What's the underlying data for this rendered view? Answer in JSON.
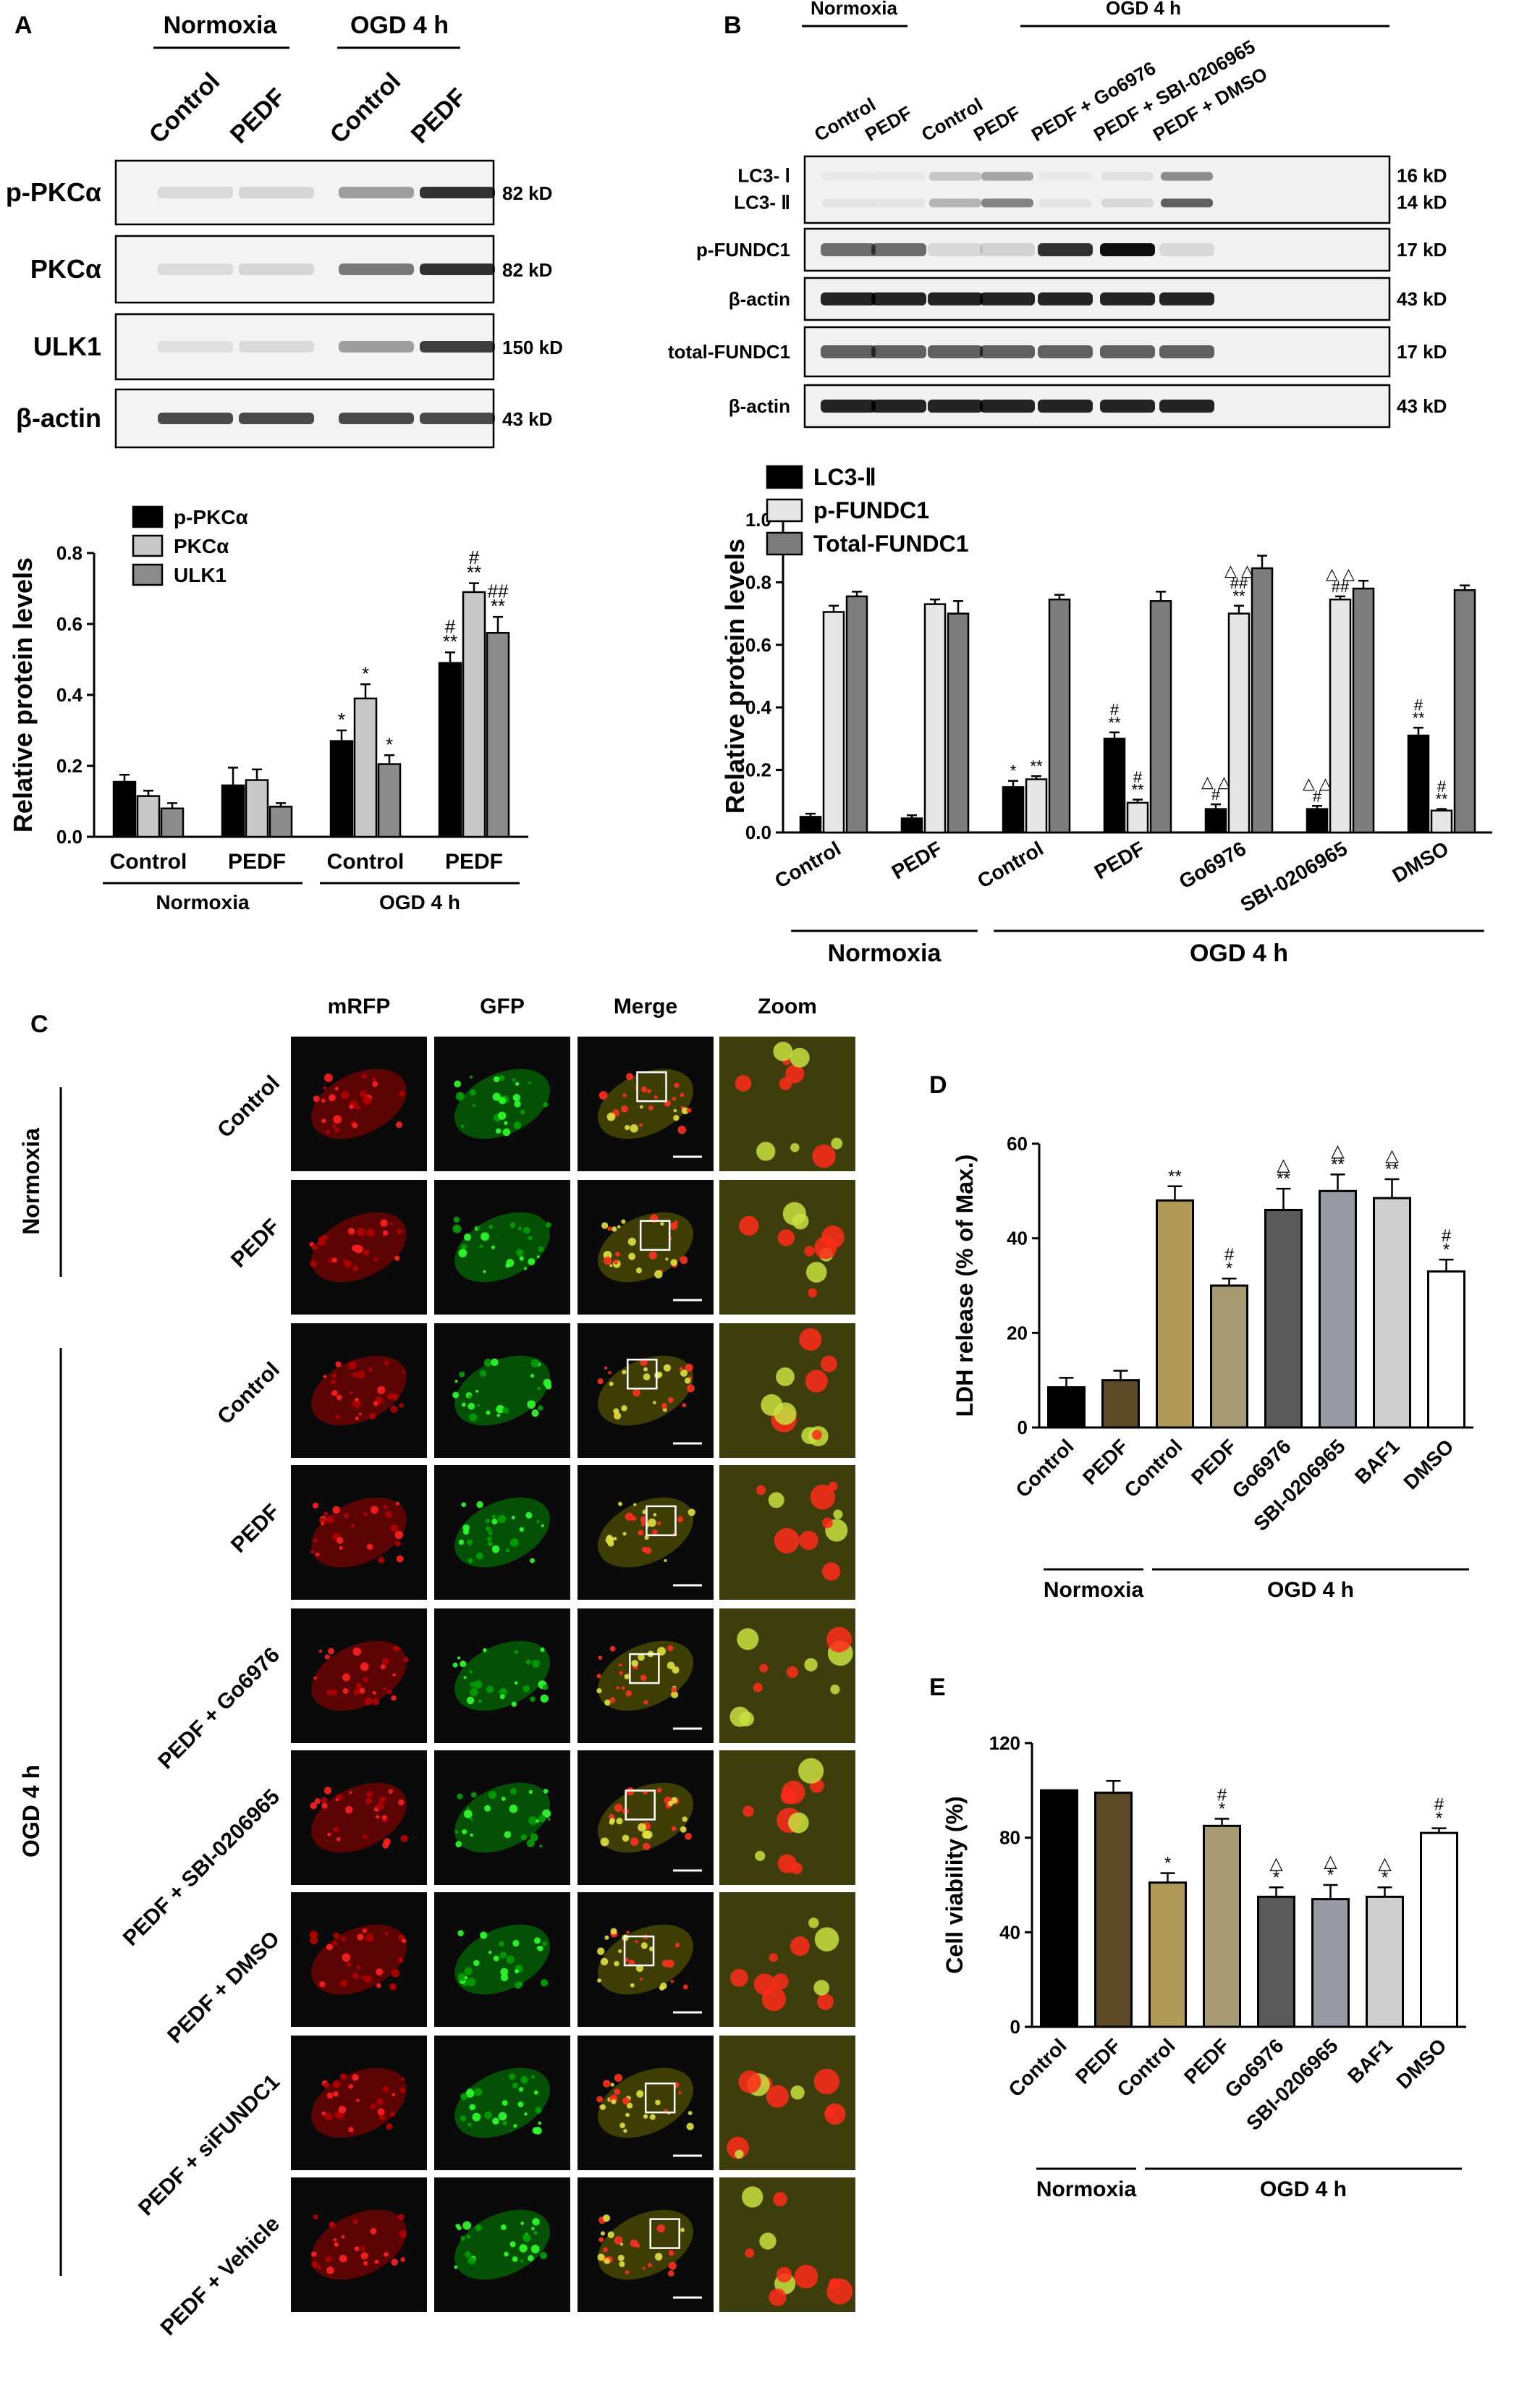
{
  "panels": {
    "A": {
      "letter": "A",
      "groups": [
        "Normoxia",
        "OGD 4 h"
      ],
      "lanes": [
        "Control",
        "PEDF",
        "Control",
        "PEDF"
      ],
      "blots": [
        {
          "name": "p-PKCα",
          "kd": "82 kD"
        },
        {
          "name": "PKCα",
          "kd": "82 kD"
        },
        {
          "name": "ULK1",
          "kd": "150 kD"
        },
        {
          "name": "β-actin",
          "kd": "43 kD"
        }
      ]
    },
    "B": {
      "letter": "B",
      "groups": [
        "Normoxia",
        "OGD 4 h"
      ],
      "lanes": [
        "Control",
        "PEDF",
        "Control",
        "PEDF",
        "PEDF + Go6976",
        "PEDF + SBI-0206965",
        "PEDF + DMSO"
      ],
      "blots": [
        {
          "name": "LC3- Ⅰ",
          "name2": "LC3- Ⅱ",
          "kd": "16 kD",
          "kd2": "14 kD"
        },
        {
          "name": "p-FUNDC1",
          "kd": "17 kD"
        },
        {
          "name": "β-actin",
          "kd": "43 kD"
        },
        {
          "name": "total-FUNDC1",
          "kd": "17 kD"
        },
        {
          "name": "β-actin",
          "kd": "43 kD"
        }
      ]
    },
    "C": {
      "letter": "C",
      "columns": [
        "mRFP",
        "GFP",
        "Merge",
        "Zoom"
      ],
      "rows": [
        "Control",
        "PEDF",
        "Control",
        "PEDF",
        "PEDF + Go6976",
        "PEDF + SBI-0206965",
        "PEDF + DMSO",
        "PEDF + siFUNDC1",
        "PEDF + Vehicle"
      ],
      "side_groups": [
        "Normoxia",
        "OGD 4 h"
      ]
    },
    "D": {
      "letter": "D"
    },
    "E": {
      "letter": "E"
    }
  },
  "chart_data": [
    {
      "id": "A",
      "type": "bar",
      "categories": [
        "Control",
        "PEDF",
        "Control",
        "PEDF"
      ],
      "groups": [
        {
          "label": "Normoxia",
          "span": [
            0,
            1
          ]
        },
        {
          "label": "OGD 4 h",
          "span": [
            2,
            3
          ]
        }
      ],
      "series": [
        {
          "name": "p-PKCα",
          "color": "#000000",
          "values": [
            0.155,
            0.145,
            0.27,
            0.49
          ],
          "errors": [
            0.02,
            0.05,
            0.03,
            0.03
          ],
          "labels": [
            "",
            "",
            "*",
            "#\n**"
          ]
        },
        {
          "name": "PKCα",
          "color": "#c8c8c8",
          "values": [
            0.115,
            0.16,
            0.39,
            0.69
          ],
          "errors": [
            0.015,
            0.03,
            0.04,
            0.025
          ],
          "labels": [
            "",
            "",
            "*",
            "#\n**"
          ]
        },
        {
          "name": "ULK1",
          "color": "#8c8c8c",
          "values": [
            0.08,
            0.085,
            0.205,
            0.575
          ],
          "errors": [
            0.015,
            0.01,
            0.025,
            0.045
          ],
          "labels": [
            "",
            "",
            "*",
            "##\n**"
          ]
        }
      ],
      "ylabel": "Relative protein levels",
      "ylim": [
        0,
        0.8
      ],
      "yticks": [
        "0.0",
        "0.2",
        "0.4",
        "0.6",
        "0.8"
      ],
      "legend": "top-left"
    },
    {
      "id": "B",
      "type": "bar",
      "categories": [
        "Control",
        "PEDF",
        "Control",
        "PEDF",
        "Go6976",
        "SBI-0206965",
        "DMSO"
      ],
      "groups": [
        {
          "label": "Normoxia",
          "span": [
            0,
            1
          ]
        },
        {
          "label": "OGD 4 h",
          "span": [
            2,
            6
          ]
        }
      ],
      "series": [
        {
          "name": "LC3-Ⅱ",
          "color": "#000000",
          "values": [
            0.05,
            0.045,
            0.145,
            0.3,
            0.075,
            0.075,
            0.31
          ],
          "errors": [
            0.01,
            0.01,
            0.02,
            0.02,
            0.015,
            0.01,
            0.025
          ],
          "labels": [
            "",
            "",
            "*",
            "#\n**",
            "△ △\n#",
            "△ △\n#",
            "#\n**"
          ]
        },
        {
          "name": "p-FUNDC1",
          "color": "#e6e6e6",
          "values": [
            0.705,
            0.73,
            0.17,
            0.095,
            0.7,
            0.745,
            0.07
          ],
          "errors": [
            0.02,
            0.015,
            0.01,
            0.01,
            0.025,
            0.01,
            0.005
          ],
          "labels": [
            "",
            "",
            "**",
            "#\n**",
            "△ △\n##\n**",
            "△ △\n##",
            "#\n**"
          ]
        },
        {
          "name": "Total-FUNDC1",
          "color": "#7d7d7d",
          "values": [
            0.755,
            0.7,
            0.745,
            0.74,
            0.845,
            0.78,
            0.775
          ],
          "errors": [
            0.015,
            0.04,
            0.015,
            0.03,
            0.04,
            0.025,
            0.015
          ],
          "labels": [
            "",
            "",
            "",
            "",
            "",
            "",
            ""
          ]
        }
      ],
      "ylabel": "Relative protein levels",
      "ylim": [
        0,
        1.0
      ],
      "yticks": [
        "0.0",
        "0.2",
        "0.4",
        "0.6",
        "0.8",
        "1.0"
      ],
      "legend": "top-left"
    },
    {
      "id": "D",
      "type": "bar",
      "categories": [
        "Control",
        "PEDF",
        "Control",
        "PEDF",
        "Go6976",
        "SBI-0206965",
        "BAF1",
        "DMSO"
      ],
      "colors": [
        "#000000",
        "#5c4a28",
        "#b09a55",
        "#a89a72",
        "#595959",
        "#9a9aa5",
        "#cfcfcf",
        "#ffffff"
      ],
      "values": [
        8.5,
        10,
        48,
        30,
        46,
        50,
        48.5,
        33
      ],
      "errors": [
        2,
        2,
        3,
        1.5,
        4.5,
        3.5,
        4,
        2.5
      ],
      "labels": [
        "",
        "",
        "**",
        "#\n*",
        "△\n**",
        "△\n**",
        "△\n**",
        "#\n*"
      ],
      "groups": [
        {
          "label": "Normoxia",
          "span": [
            0,
            1
          ]
        },
        {
          "label": "OGD 4 h",
          "span": [
            2,
            7
          ]
        }
      ],
      "ylabel": "LDH release (% of Max.)",
      "ylim": [
        0,
        60
      ],
      "yticks": [
        "0",
        "20",
        "40",
        "60"
      ]
    },
    {
      "id": "E",
      "type": "bar",
      "categories": [
        "Control",
        "PEDF",
        "Control",
        "PEDF",
        "Go6976",
        "SBI-0206965",
        "BAF1",
        "DMSO"
      ],
      "colors": [
        "#000000",
        "#5c4a28",
        "#b09a55",
        "#a89a72",
        "#595959",
        "#9a9aa5",
        "#cfcfcf",
        "#ffffff"
      ],
      "values": [
        100,
        99,
        61,
        85,
        55,
        54,
        55,
        82
      ],
      "errors": [
        0,
        5,
        4,
        3,
        4,
        6,
        4,
        2
      ],
      "labels": [
        "",
        "",
        "*",
        "#\n*",
        "△\n*",
        "△\n*",
        "△\n*",
        "#\n*"
      ],
      "groups": [
        {
          "label": "Normoxia",
          "span": [
            0,
            1
          ]
        },
        {
          "label": "OGD 4 h",
          "span": [
            2,
            7
          ]
        }
      ],
      "ylabel": "Cell viability (%)",
      "ylim": [
        0,
        120
      ],
      "yticks": [
        "0",
        "40",
        "80",
        "120"
      ]
    }
  ]
}
